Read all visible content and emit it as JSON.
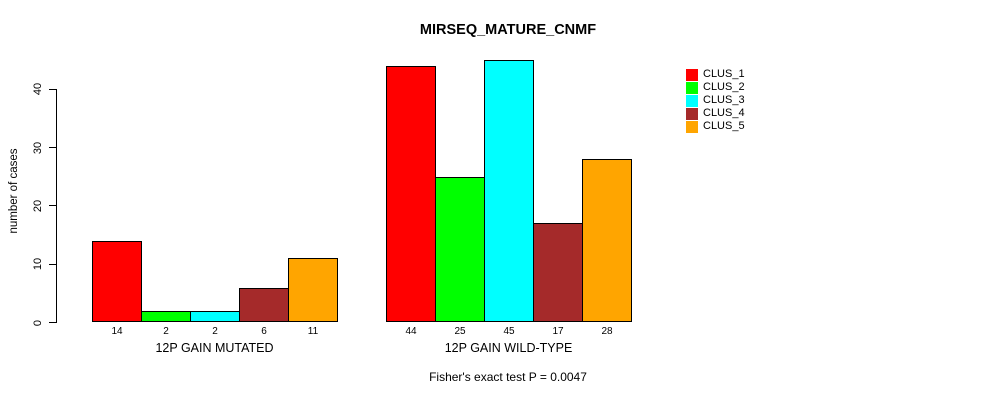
{
  "chart_data": {
    "type": "bar",
    "title": "MIRSEQ_MATURE_CNMF",
    "ylabel": "number of cases",
    "xlabel": "",
    "categories": [
      "12P GAIN MUTATED",
      "12P GAIN WILD-TYPE"
    ],
    "series": [
      {
        "name": "CLUS_1",
        "color": "#FF0000",
        "values": [
          14,
          44
        ]
      },
      {
        "name": "CLUS_2",
        "color": "#00FF00",
        "values": [
          2,
          25
        ]
      },
      {
        "name": "CLUS_3",
        "color": "#00FFFF",
        "values": [
          2,
          45
        ]
      },
      {
        "name": "CLUS_4",
        "color": "#A52A2A",
        "values": [
          6,
          17
        ]
      },
      {
        "name": "CLUS_5",
        "color": "#FFA500",
        "values": [
          11,
          28
        ]
      }
    ],
    "yticks": [
      0,
      10,
      20,
      30,
      40
    ],
    "ylim": [
      0,
      45
    ],
    "grid": false,
    "legend_position": "right",
    "bar_value_labels_shown": true,
    "annotation": "Fisher's exact test P = 0.0047",
    "axis_color": "#000000",
    "background_color": "#FFFFFF"
  }
}
